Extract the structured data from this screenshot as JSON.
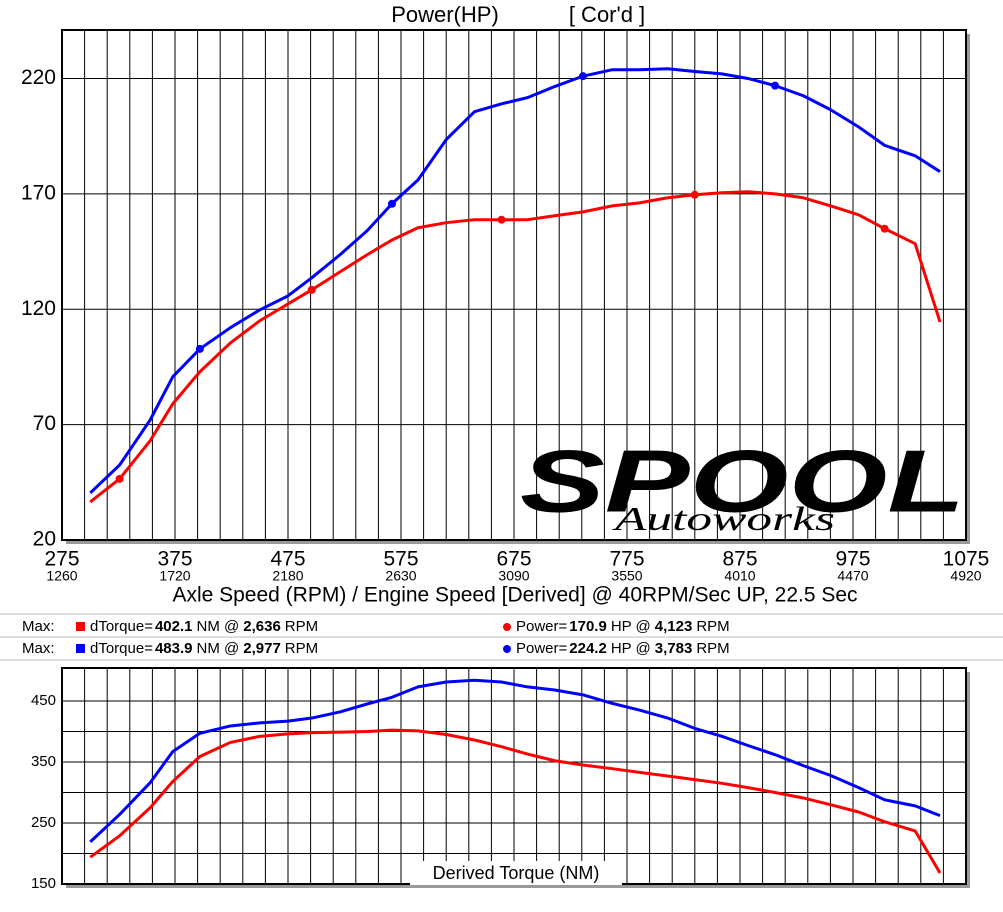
{
  "chart_data": [
    {
      "type": "line",
      "title": "Power(HP)",
      "subtitle": "[ Cor'd ]",
      "xlabel": "Axle Speed (RPM) / Engine Speed [Derived] @ 40RPM/Sec UP, 22.5 Sec",
      "x": [
        300,
        326,
        353,
        373,
        397,
        424,
        450,
        475,
        496,
        521,
        545,
        567,
        590,
        615,
        640,
        664,
        687,
        711,
        736,
        762,
        786,
        811,
        835,
        859,
        882,
        906,
        931,
        955,
        980,
        1003,
        1030,
        1052
      ],
      "series": [
        {
          "color": "#0000ff",
          "markers": [
            4,
            11,
            18,
            25
          ],
          "values": [
            40.4,
            52.5,
            72,
            90.7,
            102.8,
            112,
            119.7,
            125.8,
            133.6,
            143.6,
            154,
            165.7,
            176,
            193.5,
            205.6,
            209,
            211.7,
            216.5,
            221,
            223.8,
            223.8,
            224.2,
            223,
            222,
            220,
            216.9,
            212.5,
            206.5,
            199,
            191,
            186.5,
            179.6
          ]
        },
        {
          "color": "#ff0000",
          "markers": [
            1,
            8,
            15,
            22,
            29
          ],
          "values": [
            36.5,
            46.5,
            63,
            79,
            92.9,
            105.4,
            115,
            122.3,
            128.4,
            136.2,
            143.6,
            150,
            155.3,
            157.5,
            158.8,
            158.8,
            158.8,
            160.5,
            162.2,
            164.8,
            166.1,
            168.3,
            169.6,
            170.5,
            170.9,
            170,
            168.3,
            164.8,
            160.9,
            154.9,
            148.4,
            114.5
          ]
        }
      ],
      "xlim": [
        275,
        1075
      ],
      "xticks": [
        275,
        375,
        475,
        575,
        675,
        775,
        875,
        975,
        1075
      ],
      "engine_ticks": [
        1260,
        1720,
        2180,
        2630,
        3090,
        3550,
        4010,
        4470,
        4920
      ],
      "ylim": [
        20,
        241
      ],
      "yticks": [
        20,
        70,
        120,
        170,
        220
      ],
      "grid": true,
      "x_minor_grid": 5,
      "y_minor_grid": 1,
      "watermark": {
        "main": "SPOOL",
        "sub": "Autoworks"
      }
    },
    {
      "type": "line",
      "title": "Derived Torque (NM)",
      "x": [
        300,
        326,
        353,
        373,
        397,
        424,
        450,
        475,
        496,
        521,
        545,
        567,
        590,
        615,
        640,
        664,
        687,
        711,
        736,
        762,
        786,
        811,
        835,
        859,
        882,
        906,
        931,
        955,
        980,
        1003,
        1030,
        1052
      ],
      "series": [
        {
          "color": "#0000ff",
          "values": [
            219,
            264,
            316,
            367,
            397,
            409,
            414,
            417,
            422,
            432,
            445,
            456,
            473,
            481,
            483.9,
            481,
            473,
            468,
            460,
            446,
            435,
            422,
            405,
            392,
            377,
            362,
            344,
            328,
            308,
            288,
            278,
            262
          ]
        },
        {
          "color": "#ff0000",
          "values": [
            194,
            229,
            275,
            318,
            359,
            382,
            392,
            396,
            398,
            399,
            400,
            402.1,
            401,
            395,
            386,
            375,
            363,
            352,
            345,
            339,
            333,
            327,
            321,
            315,
            308,
            300,
            291,
            280,
            268,
            252,
            237,
            168
          ]
        }
      ],
      "xlim": [
        275,
        1075
      ],
      "xticks": [
        275,
        375,
        475,
        575,
        675,
        775,
        875,
        975,
        1075
      ],
      "xtick_labels": false,
      "ylim": [
        150,
        504
      ],
      "yticks": [
        150,
        250,
        350,
        450
      ],
      "grid": true,
      "x_minor_grid": 5,
      "y_minor_grid": 2
    }
  ],
  "max_table": {
    "rows": [
      {
        "label": "Max:",
        "color": "#ff0000",
        "torque_name": "dTorque=",
        "torque_value": "402.1",
        "torque_unit": "NM @",
        "torque_rpm": "2,636",
        "torque_rpm_unit": "RPM",
        "power_name": "Power=",
        "power_value": "170.9",
        "power_unit": "HP @",
        "power_rpm": "4,123",
        "power_rpm_unit": "RPM"
      },
      {
        "label": "Max:",
        "color": "#0000ff",
        "torque_name": "dTorque=",
        "torque_value": "483.9",
        "torque_unit": "NM @",
        "torque_rpm": "2,977",
        "torque_rpm_unit": "RPM",
        "power_name": "Power=",
        "power_value": "224.2",
        "power_unit": "HP @",
        "power_rpm": "3,783",
        "power_rpm_unit": "RPM"
      }
    ]
  }
}
